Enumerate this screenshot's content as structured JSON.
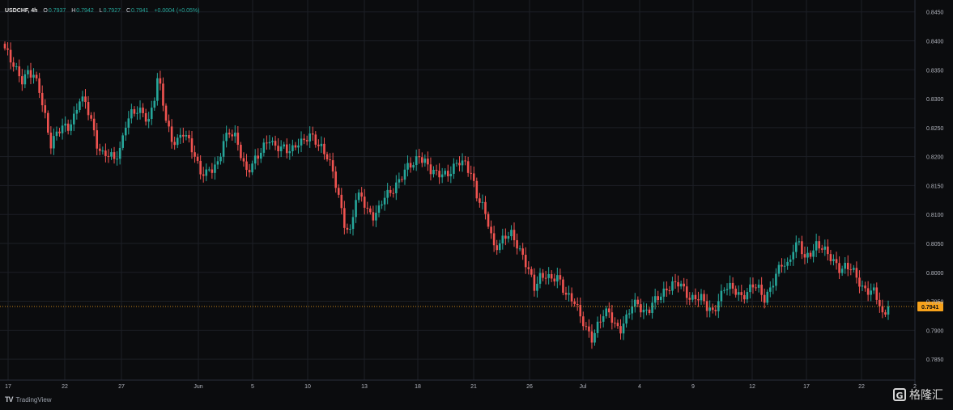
{
  "legend": {
    "symbol": "USDCHF, 4h",
    "o_label": "O",
    "o_value": "0.7937",
    "h_label": "H",
    "h_value": "0.7942",
    "l_label": "L",
    "l_value": "0.7927",
    "c_label": "C",
    "c_value": "0.7941",
    "change": "+0.0004 (+0.05%)"
  },
  "branding": {
    "tradingview_mark": "TV",
    "tradingview_label": "TradingView",
    "watermark_icon": "G",
    "watermark_text": "格隆汇"
  },
  "colors": {
    "background": "#0b0c0e",
    "grid": "#1c1f26",
    "up": "#26a69a",
    "down": "#ef5350",
    "price_line": "#f7a21b",
    "axis_text": "#b2b5be"
  },
  "chart_data": {
    "type": "candlestick",
    "title": "USDCHF, 4h",
    "ylim": [
      0.7825,
      0.8465
    ],
    "y_ticks": [
      "0.8450",
      "0.8400",
      "0.8350",
      "0.8300",
      "0.8250",
      "0.8200",
      "0.8150",
      "0.8100",
      "0.8050",
      "0.8000",
      "0.7950",
      "0.7900",
      "0.7850"
    ],
    "x_ticks": [
      "17",
      "22",
      "27",
      "Jun",
      "5",
      "10",
      "13",
      "18",
      "21",
      "26",
      "Jul",
      "4",
      "9",
      "12",
      "17",
      "22",
      "2"
    ],
    "current_price": 0.7941,
    "current_price_label": "0.7941",
    "close_path": [
      [
        0,
        0.8387
      ],
      [
        2,
        0.8362
      ],
      [
        4,
        0.8348
      ],
      [
        6,
        0.8336
      ],
      [
        8,
        0.8348
      ],
      [
        10,
        0.8336
      ],
      [
        12,
        0.8312
      ],
      [
        14,
        0.8272
      ],
      [
        16,
        0.8224
      ],
      [
        18,
        0.8238
      ],
      [
        20,
        0.8247
      ],
      [
        22,
        0.8252
      ],
      [
        24,
        0.8272
      ],
      [
        26,
        0.83
      ],
      [
        28,
        0.8288
      ],
      [
        30,
        0.8262
      ],
      [
        32,
        0.8225
      ],
      [
        34,
        0.8205
      ],
      [
        36,
        0.82
      ],
      [
        38,
        0.8193
      ],
      [
        40,
        0.8215
      ],
      [
        42,
        0.826
      ],
      [
        44,
        0.8272
      ],
      [
        46,
        0.8275
      ],
      [
        48,
        0.8278
      ],
      [
        50,
        0.8265
      ],
      [
        52,
        0.8302
      ],
      [
        53,
        0.833
      ],
      [
        54,
        0.8315
      ],
      [
        56,
        0.8265
      ],
      [
        58,
        0.8232
      ],
      [
        60,
        0.8228
      ],
      [
        62,
        0.8237
      ],
      [
        64,
        0.8224
      ],
      [
        66,
        0.8206
      ],
      [
        68,
        0.8175
      ],
      [
        70,
        0.8168
      ],
      [
        72,
        0.8175
      ],
      [
        74,
        0.819
      ],
      [
        76,
        0.8232
      ],
      [
        78,
        0.824
      ],
      [
        80,
        0.823
      ],
      [
        82,
        0.8205
      ],
      [
        84,
        0.8178
      ],
      [
        86,
        0.8188
      ],
      [
        88,
        0.8196
      ],
      [
        90,
        0.8216
      ],
      [
        92,
        0.8236
      ],
      [
        94,
        0.8218
      ],
      [
        96,
        0.8212
      ],
      [
        98,
        0.8208
      ],
      [
        100,
        0.8216
      ],
      [
        102,
        0.8229
      ],
      [
        104,
        0.8224
      ],
      [
        106,
        0.8233
      ],
      [
        108,
        0.8228
      ],
      [
        110,
        0.822
      ],
      [
        112,
        0.82
      ],
      [
        114,
        0.8168
      ],
      [
        116,
        0.813
      ],
      [
        118,
        0.8088
      ],
      [
        120,
        0.807
      ],
      [
        122,
        0.8125
      ],
      [
        124,
        0.8128
      ],
      [
        126,
        0.811
      ],
      [
        128,
        0.81
      ],
      [
        130,
        0.8106
      ],
      [
        132,
        0.8128
      ],
      [
        134,
        0.814
      ],
      [
        136,
        0.8155
      ],
      [
        138,
        0.8166
      ],
      [
        140,
        0.8178
      ],
      [
        142,
        0.8188
      ],
      [
        144,
        0.8206
      ],
      [
        146,
        0.8192
      ],
      [
        148,
        0.8172
      ],
      [
        150,
        0.8168
      ],
      [
        152,
        0.8175
      ],
      [
        154,
        0.8172
      ],
      [
        156,
        0.8178
      ],
      [
        158,
        0.8188
      ],
      [
        160,
        0.819
      ],
      [
        162,
        0.8176
      ],
      [
        164,
        0.813
      ],
      [
        166,
        0.811
      ],
      [
        168,
        0.8086
      ],
      [
        170,
        0.8048
      ],
      [
        172,
        0.805
      ],
      [
        174,
        0.8058
      ],
      [
        176,
        0.8065
      ],
      [
        178,
        0.8052
      ],
      [
        180,
        0.803
      ],
      [
        182,
        0.8
      ],
      [
        184,
        0.797
      ],
      [
        186,
        0.7995
      ],
      [
        188,
        0.8
      ],
      [
        190,
        0.7985
      ],
      [
        192,
        0.7988
      ],
      [
        194,
        0.7972
      ],
      [
        196,
        0.7962
      ],
      [
        198,
        0.795
      ],
      [
        200,
        0.7918
      ],
      [
        202,
        0.7902
      ],
      [
        204,
        0.789
      ],
      [
        206,
        0.791
      ],
      [
        208,
        0.7924
      ],
      [
        210,
        0.7928
      ],
      [
        212,
        0.7912
      ],
      [
        214,
        0.7905
      ],
      [
        216,
        0.7918
      ],
      [
        218,
        0.794
      ],
      [
        220,
        0.7948
      ],
      [
        222,
        0.7935
      ],
      [
        224,
        0.7936
      ],
      [
        226,
        0.7948
      ],
      [
        228,
        0.796
      ],
      [
        230,
        0.7976
      ],
      [
        232,
        0.798
      ],
      [
        234,
        0.7978
      ],
      [
        236,
        0.7968
      ],
      [
        238,
        0.7958
      ],
      [
        240,
        0.796
      ],
      [
        242,
        0.7953
      ],
      [
        244,
        0.7936
      ],
      [
        246,
        0.7933
      ],
      [
        248,
        0.7955
      ],
      [
        250,
        0.7972
      ],
      [
        252,
        0.797
      ],
      [
        254,
        0.7968
      ],
      [
        256,
        0.7962
      ],
      [
        258,
        0.7966
      ],
      [
        260,
        0.7974
      ],
      [
        262,
        0.797
      ],
      [
        264,
        0.7958
      ],
      [
        266,
        0.7974
      ],
      [
        268,
        0.7992
      ],
      [
        270,
        0.8012
      ],
      [
        272,
        0.8014
      ],
      [
        274,
        0.8045
      ],
      [
        276,
        0.805
      ],
      [
        278,
        0.8018
      ],
      [
        280,
        0.8034
      ],
      [
        282,
        0.8052
      ],
      [
        284,
        0.8044
      ],
      [
        286,
        0.8026
      ],
      [
        288,
        0.8018
      ],
      [
        290,
        0.801
      ],
      [
        292,
        0.8012
      ],
      [
        294,
        0.8004
      ],
      [
        296,
        0.7988
      ],
      [
        298,
        0.7976
      ],
      [
        300,
        0.7972
      ],
      [
        302,
        0.7965
      ],
      [
        304,
        0.794
      ],
      [
        305,
        0.7922
      ],
      [
        306,
        0.793
      ],
      [
        307,
        0.7941
      ]
    ]
  }
}
